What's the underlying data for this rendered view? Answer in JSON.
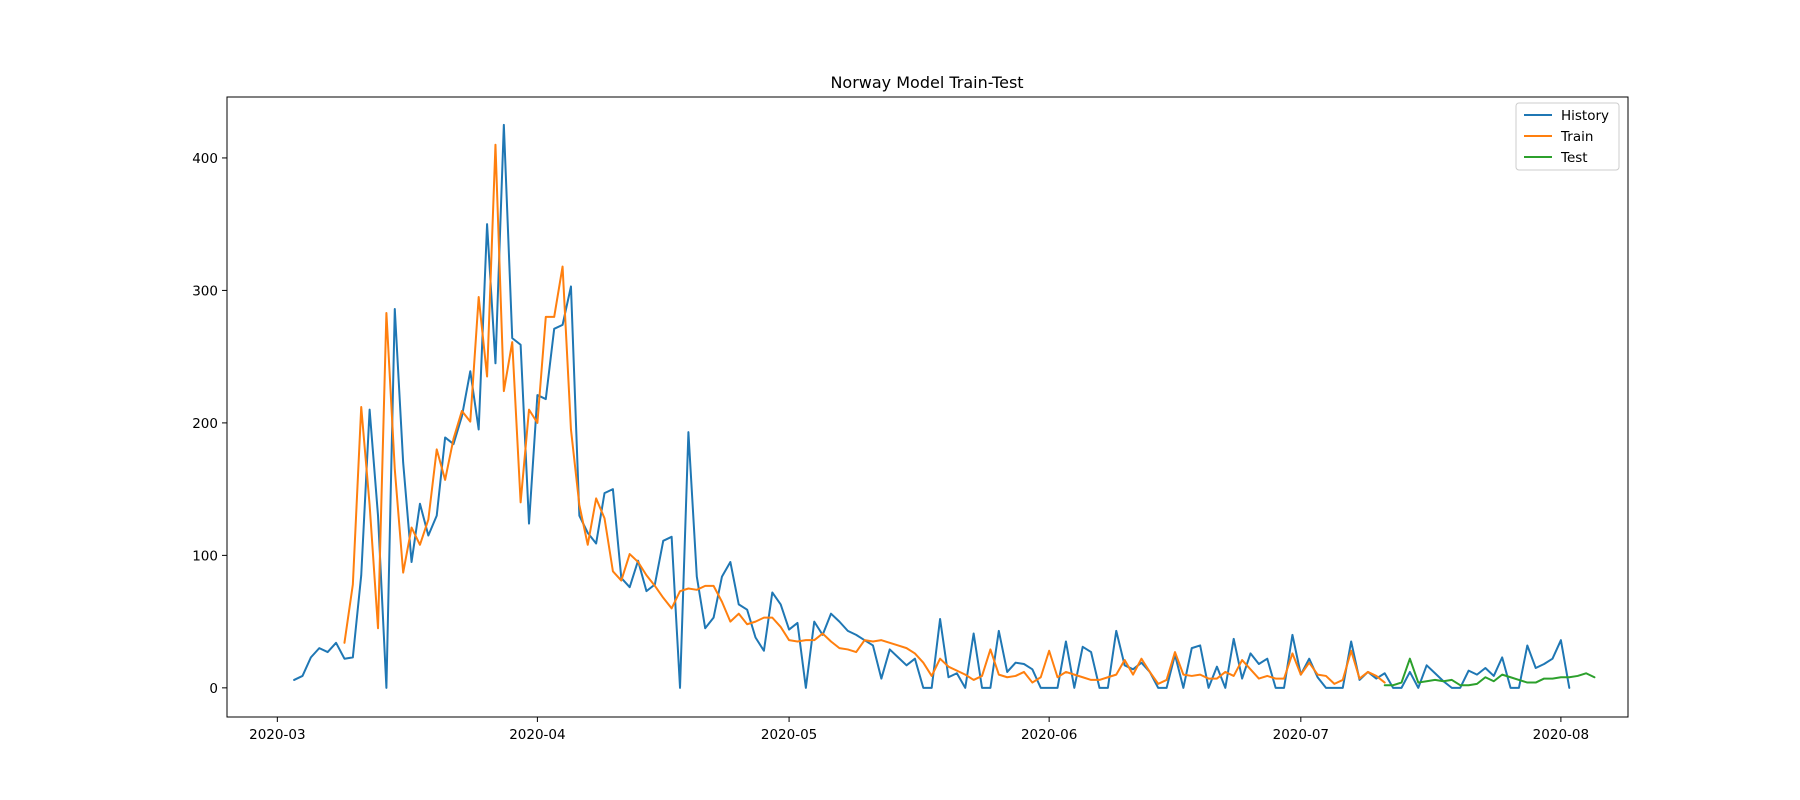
{
  "chart_data": {
    "type": "line",
    "title": "Norway Model Train-Test",
    "xlabel": "",
    "ylabel": "",
    "x_start": "2020-03-03",
    "xlim": [
      "2020-02-24",
      "2020-08-09"
    ],
    "ylim": [
      -22,
      446
    ],
    "x_ticks": [
      "2020-03-01",
      "2020-04-01",
      "2020-05-01",
      "2020-06-01",
      "2020-07-01",
      "2020-08-01"
    ],
    "x_tick_labels": [
      "2020-03",
      "2020-04",
      "2020-05",
      "2020-06",
      "2020-07",
      "2020-08"
    ],
    "y_ticks": [
      0,
      100,
      200,
      300,
      400
    ],
    "y_tick_labels": [
      "0",
      "100",
      "200",
      "300",
      "400"
    ],
    "grid": false,
    "legend_position": "upper right",
    "series": [
      {
        "name": "History",
        "color": "#1f77b4",
        "start": "2020-03-03",
        "values": [
          6,
          9,
          23,
          30,
          27,
          34,
          22,
          23,
          85,
          210,
          130,
          0,
          286,
          170,
          95,
          139,
          115,
          130,
          189,
          184,
          205,
          239,
          195,
          350,
          245,
          425,
          264,
          259,
          124,
          221,
          218,
          271,
          274,
          303,
          130,
          117,
          109,
          147,
          150,
          83,
          76,
          96,
          73,
          78,
          111,
          114,
          0,
          193,
          84,
          45,
          53,
          84,
          95,
          63,
          59,
          38,
          28,
          72,
          63,
          44,
          49,
          0,
          50,
          40,
          56,
          50,
          43,
          40,
          36,
          32,
          7,
          29,
          23,
          17,
          22,
          0,
          0,
          52,
          8,
          11,
          0,
          41,
          0,
          0,
          43,
          12,
          19,
          18,
          14,
          0,
          0,
          0,
          35,
          0,
          31,
          27,
          0,
          0,
          43,
          17,
          14,
          19,
          12,
          0,
          0,
          25,
          0,
          30,
          32,
          0,
          16,
          0,
          37,
          7,
          26,
          18,
          22,
          0,
          0,
          40,
          10,
          22,
          8,
          0,
          0,
          0,
          35,
          6,
          12,
          7,
          11,
          0,
          0,
          12,
          0,
          17,
          11,
          5,
          0,
          0,
          13,
          10,
          15,
          9,
          23,
          0,
          0,
          32,
          15,
          18,
          22,
          36,
          0
        ]
      },
      {
        "name": "Train",
        "color": "#ff7f0e",
        "start": "2020-03-09",
        "values": [
          34,
          78,
          212,
          138,
          45,
          283,
          165,
          87,
          121,
          108,
          127,
          180,
          157,
          188,
          209,
          201,
          295,
          235,
          410,
          224,
          261,
          140,
          210,
          200,
          280,
          280,
          318,
          195,
          138,
          108,
          143,
          128,
          88,
          81,
          101,
          95,
          85,
          77,
          68,
          60,
          73,
          75,
          74,
          77,
          77,
          65,
          50,
          56,
          48,
          50,
          53,
          53,
          46,
          36,
          35,
          36,
          36,
          41,
          35,
          30,
          29,
          27,
          36,
          35,
          36,
          34,
          32,
          30,
          26,
          19,
          9,
          22,
          16,
          13,
          10,
          6,
          9,
          29,
          10,
          8,
          9,
          12,
          4,
          8,
          28,
          8,
          12,
          10,
          8,
          6,
          6,
          8,
          10,
          21,
          10,
          22,
          12,
          3,
          6,
          27,
          10,
          9,
          10,
          7,
          7,
          12,
          9,
          21,
          14,
          7,
          9,
          7,
          7,
          26,
          10,
          19,
          10,
          9,
          3,
          6,
          28,
          7,
          12,
          9,
          4
        ]
      },
      {
        "name": "Test",
        "color": "#2ca02c",
        "start": "2020-07-11",
        "values": [
          2,
          2,
          4,
          22,
          4,
          5,
          6,
          5,
          6,
          2,
          2,
          3,
          8,
          5,
          10,
          8,
          6,
          4,
          4,
          7,
          7,
          8,
          8,
          9,
          11,
          8
        ]
      }
    ]
  }
}
